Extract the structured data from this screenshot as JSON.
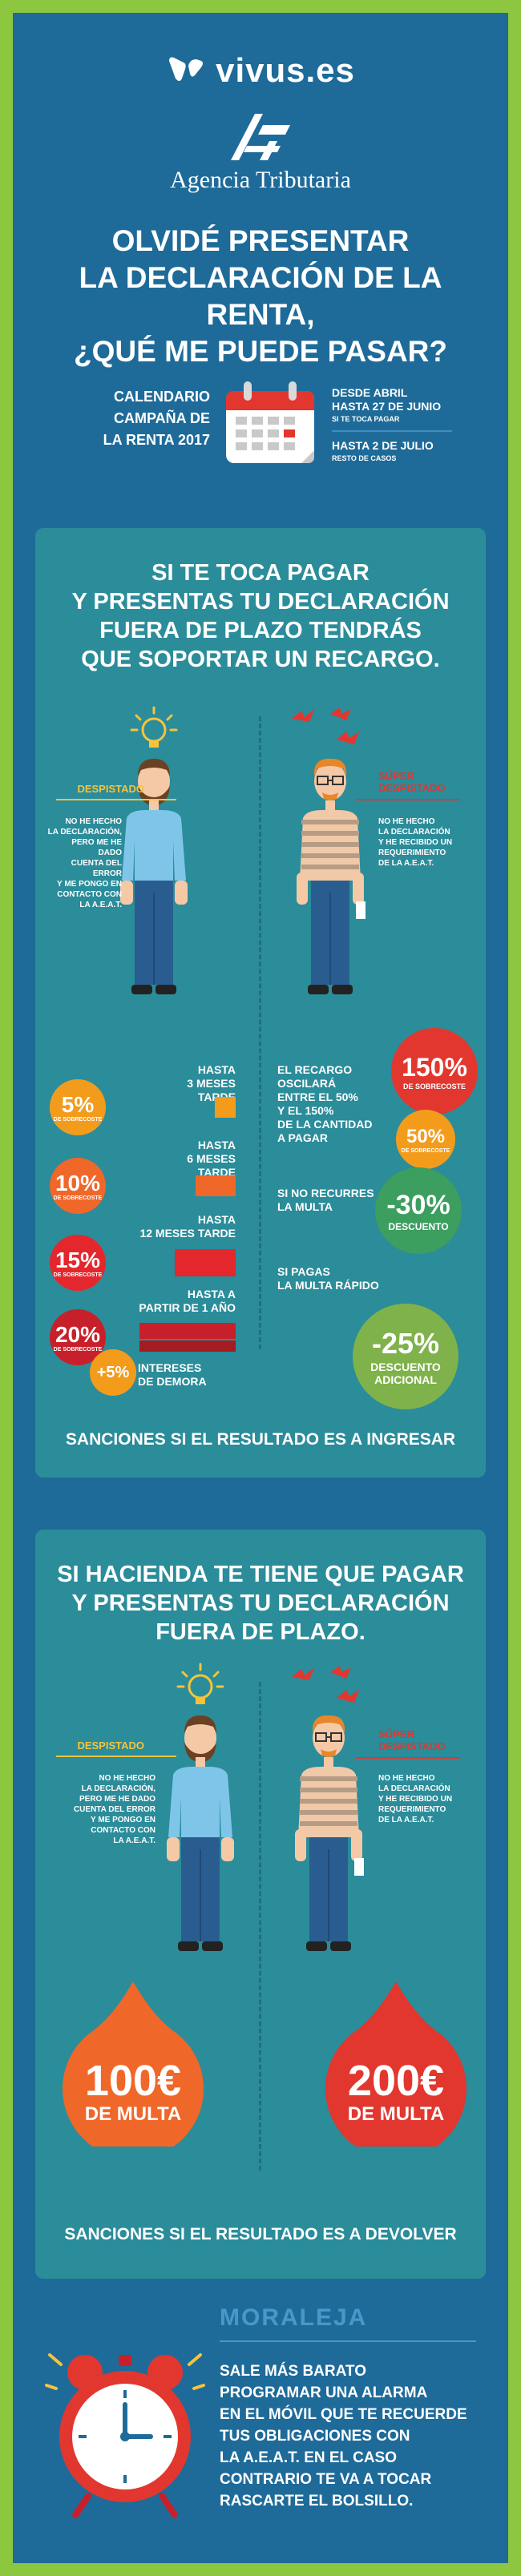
{
  "brand": {
    "name": "vivus.es",
    "agency": "Agencia Tributaria"
  },
  "title": {
    "lines": [
      "OLVIDÉ PRESENTAR",
      "LA DECLARACIÓN DE LA RENTA,",
      "¿QUÉ ME PUEDE PASAR?"
    ]
  },
  "calendar": {
    "label": [
      "CALENDARIO",
      "CAMPAÑA DE",
      "LA RENTA 2017"
    ],
    "date1": [
      "DESDE ABRIL",
      "HASTA 27 DE JUNIO"
    ],
    "date1_note": "SI TE TOCA PAGAR",
    "date2": "HASTA 2 DE JULIO",
    "date2_note": "RESTO DE CASOS"
  },
  "section1": {
    "title": [
      "SI TE TOCA PAGAR",
      "Y PRESENTAS TU DECLARACIÓN",
      "FUERA DE PLAZO TENDRÁS",
      "QUE SOPORTAR UN RECARGO."
    ],
    "left_tag": "DESPISTADO",
    "left_text": [
      "NO HE HECHO",
      "LA DECLARACIÓN,",
      "PERO ME HE DADO",
      "CUENTA DEL ERROR",
      "Y ME PONGO EN",
      "CONTACTO CON",
      "LA A.E.A.T."
    ],
    "right_tag": [
      "SÚPER",
      "DESPISTADO"
    ],
    "right_text": [
      "NO HE HECHO",
      "LA DECLARACIÓN",
      "Y HE RECIBIDO UN",
      "REQUERIMIENTO",
      "DE LA A.E.A.T."
    ],
    "surcharges": [
      {
        "label": [
          "HASTA",
          "3 MESES TARDE"
        ],
        "value": "5%",
        "unit": "DE SOBRECOSTE",
        "color": "#f39c1c"
      },
      {
        "label": [
          "HASTA",
          "6 MESES TARDE"
        ],
        "value": "10%",
        "unit": "DE SOBRECOSTE",
        "color": "#f0672a"
      },
      {
        "label": [
          "HASTA",
          "12 MESES TARDE"
        ],
        "value": "15%",
        "unit": "DE SOBRECOSTE",
        "color": "#e4272d"
      },
      {
        "label": [
          "HASTA A",
          "PARTIR DE 1 AÑO"
        ],
        "value": "20%",
        "unit": "DE SOBRECOSTE",
        "color": "#c8202a"
      }
    ],
    "interest": {
      "value": "+5%",
      "label": [
        "INTERESES",
        "DE DEMORA"
      ]
    },
    "penalty_text": [
      "EL RECARGO",
      "OSCILARÁ",
      "ENTRE EL 50%",
      "Y EL 150%",
      "DE LA CANTIDAD",
      "A PAGAR"
    ],
    "penalty_max": {
      "value": "150%",
      "unit": "DE SOBRECOSTE"
    },
    "penalty_min": {
      "value": "50%",
      "unit": "DE SOBRECOSTE"
    },
    "no_appeal": {
      "text": [
        "SI NO RECURRES",
        "LA MULTA"
      ],
      "value": "-30%",
      "unit": "DESCUENTO"
    },
    "fast_pay": {
      "text": [
        "SI PAGAS",
        "LA MULTA RÁPIDO"
      ],
      "value": "-25%",
      "unit": [
        "DESCUENTO",
        "ADICIONAL"
      ]
    },
    "footer": "SANCIONES SI EL RESULTADO ES A INGRESAR"
  },
  "section2": {
    "title": [
      "SI HACIENDA TE TIENE QUE PAGAR",
      "Y PRESENTAS TU DECLARACIÓN",
      "FUERA DE PLAZO."
    ],
    "left_tag": "DESPISTADO",
    "left_text": [
      "NO HE HECHO",
      "LA DECLARACIÓN,",
      "PERO ME HE DADO",
      "CUENTA DEL ERROR",
      "Y ME PONGO EN",
      "CONTACTO CON",
      "LA A.E.A.T."
    ],
    "right_tag": [
      "SÚPER",
      "DESPISTADO"
    ],
    "right_text": [
      "NO HE HECHO",
      "LA DECLARACIÓN",
      "Y HE RECIBIDO UN",
      "REQUERIMIENTO",
      "DE LA A.E.A.T."
    ],
    "fine_left": {
      "value": "100€",
      "unit": "DE MULTA"
    },
    "fine_right": {
      "value": "200€",
      "unit": "DE MULTA"
    },
    "footer": "SANCIONES SI EL RESULTADO ES A DEVOLVER"
  },
  "moral": {
    "title": "MORALEJA",
    "text": [
      "SALE MÁS BARATO",
      "PROGRAMAR UNA ALARMA",
      "EN EL MÓVIL QUE TE RECUERDE",
      "TUS OBLIGACIONES CON",
      "LA A.E.A.T. EN EL CASO",
      "CONTRARIO TE VA A TOCAR",
      "RASCARTE EL BOLSILLO."
    ]
  },
  "colors": {
    "background": "#1e6b9a",
    "frame": "#8dc63f",
    "panel": "#2b8c9a",
    "yellow": "#f7c33b",
    "red": "#e2372f",
    "orange": "#f39c1c",
    "green": "#3c9e5f"
  }
}
